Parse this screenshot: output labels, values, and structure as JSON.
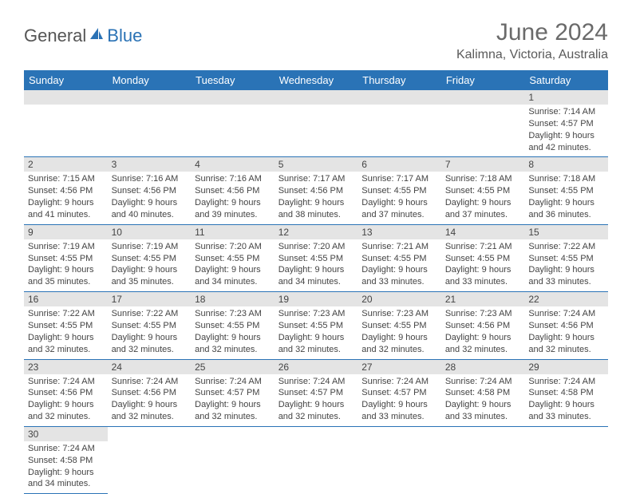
{
  "brand": {
    "part1": "General",
    "part2": "Blue"
  },
  "title": {
    "month": "June 2024",
    "location": "Kalimna, Victoria, Australia"
  },
  "colors": {
    "header_bg": "#2a73b6",
    "header_text": "#ffffff",
    "daynum_bg": "#e4e4e4",
    "row_border": "#2a73b6",
    "text": "#444444",
    "logo_gray": "#555555",
    "logo_blue": "#2a72b5"
  },
  "week_header": [
    "Sunday",
    "Monday",
    "Tuesday",
    "Wednesday",
    "Thursday",
    "Friday",
    "Saturday"
  ],
  "weeks": [
    [
      null,
      null,
      null,
      null,
      null,
      null,
      {
        "n": "1",
        "sr": "Sunrise: 7:14 AM",
        "ss": "Sunset: 4:57 PM",
        "d1": "Daylight: 9 hours",
        "d2": "and 42 minutes."
      }
    ],
    [
      {
        "n": "2",
        "sr": "Sunrise: 7:15 AM",
        "ss": "Sunset: 4:56 PM",
        "d1": "Daylight: 9 hours",
        "d2": "and 41 minutes."
      },
      {
        "n": "3",
        "sr": "Sunrise: 7:16 AM",
        "ss": "Sunset: 4:56 PM",
        "d1": "Daylight: 9 hours",
        "d2": "and 40 minutes."
      },
      {
        "n": "4",
        "sr": "Sunrise: 7:16 AM",
        "ss": "Sunset: 4:56 PM",
        "d1": "Daylight: 9 hours",
        "d2": "and 39 minutes."
      },
      {
        "n": "5",
        "sr": "Sunrise: 7:17 AM",
        "ss": "Sunset: 4:56 PM",
        "d1": "Daylight: 9 hours",
        "d2": "and 38 minutes."
      },
      {
        "n": "6",
        "sr": "Sunrise: 7:17 AM",
        "ss": "Sunset: 4:55 PM",
        "d1": "Daylight: 9 hours",
        "d2": "and 37 minutes."
      },
      {
        "n": "7",
        "sr": "Sunrise: 7:18 AM",
        "ss": "Sunset: 4:55 PM",
        "d1": "Daylight: 9 hours",
        "d2": "and 37 minutes."
      },
      {
        "n": "8",
        "sr": "Sunrise: 7:18 AM",
        "ss": "Sunset: 4:55 PM",
        "d1": "Daylight: 9 hours",
        "d2": "and 36 minutes."
      }
    ],
    [
      {
        "n": "9",
        "sr": "Sunrise: 7:19 AM",
        "ss": "Sunset: 4:55 PM",
        "d1": "Daylight: 9 hours",
        "d2": "and 35 minutes."
      },
      {
        "n": "10",
        "sr": "Sunrise: 7:19 AM",
        "ss": "Sunset: 4:55 PM",
        "d1": "Daylight: 9 hours",
        "d2": "and 35 minutes."
      },
      {
        "n": "11",
        "sr": "Sunrise: 7:20 AM",
        "ss": "Sunset: 4:55 PM",
        "d1": "Daylight: 9 hours",
        "d2": "and 34 minutes."
      },
      {
        "n": "12",
        "sr": "Sunrise: 7:20 AM",
        "ss": "Sunset: 4:55 PM",
        "d1": "Daylight: 9 hours",
        "d2": "and 34 minutes."
      },
      {
        "n": "13",
        "sr": "Sunrise: 7:21 AM",
        "ss": "Sunset: 4:55 PM",
        "d1": "Daylight: 9 hours",
        "d2": "and 33 minutes."
      },
      {
        "n": "14",
        "sr": "Sunrise: 7:21 AM",
        "ss": "Sunset: 4:55 PM",
        "d1": "Daylight: 9 hours",
        "d2": "and 33 minutes."
      },
      {
        "n": "15",
        "sr": "Sunrise: 7:22 AM",
        "ss": "Sunset: 4:55 PM",
        "d1": "Daylight: 9 hours",
        "d2": "and 33 minutes."
      }
    ],
    [
      {
        "n": "16",
        "sr": "Sunrise: 7:22 AM",
        "ss": "Sunset: 4:55 PM",
        "d1": "Daylight: 9 hours",
        "d2": "and 32 minutes."
      },
      {
        "n": "17",
        "sr": "Sunrise: 7:22 AM",
        "ss": "Sunset: 4:55 PM",
        "d1": "Daylight: 9 hours",
        "d2": "and 32 minutes."
      },
      {
        "n": "18",
        "sr": "Sunrise: 7:23 AM",
        "ss": "Sunset: 4:55 PM",
        "d1": "Daylight: 9 hours",
        "d2": "and 32 minutes."
      },
      {
        "n": "19",
        "sr": "Sunrise: 7:23 AM",
        "ss": "Sunset: 4:55 PM",
        "d1": "Daylight: 9 hours",
        "d2": "and 32 minutes."
      },
      {
        "n": "20",
        "sr": "Sunrise: 7:23 AM",
        "ss": "Sunset: 4:55 PM",
        "d1": "Daylight: 9 hours",
        "d2": "and 32 minutes."
      },
      {
        "n": "21",
        "sr": "Sunrise: 7:23 AM",
        "ss": "Sunset: 4:56 PM",
        "d1": "Daylight: 9 hours",
        "d2": "and 32 minutes."
      },
      {
        "n": "22",
        "sr": "Sunrise: 7:24 AM",
        "ss": "Sunset: 4:56 PM",
        "d1": "Daylight: 9 hours",
        "d2": "and 32 minutes."
      }
    ],
    [
      {
        "n": "23",
        "sr": "Sunrise: 7:24 AM",
        "ss": "Sunset: 4:56 PM",
        "d1": "Daylight: 9 hours",
        "d2": "and 32 minutes."
      },
      {
        "n": "24",
        "sr": "Sunrise: 7:24 AM",
        "ss": "Sunset: 4:56 PM",
        "d1": "Daylight: 9 hours",
        "d2": "and 32 minutes."
      },
      {
        "n": "25",
        "sr": "Sunrise: 7:24 AM",
        "ss": "Sunset: 4:57 PM",
        "d1": "Daylight: 9 hours",
        "d2": "and 32 minutes."
      },
      {
        "n": "26",
        "sr": "Sunrise: 7:24 AM",
        "ss": "Sunset: 4:57 PM",
        "d1": "Daylight: 9 hours",
        "d2": "and 32 minutes."
      },
      {
        "n": "27",
        "sr": "Sunrise: 7:24 AM",
        "ss": "Sunset: 4:57 PM",
        "d1": "Daylight: 9 hours",
        "d2": "and 33 minutes."
      },
      {
        "n": "28",
        "sr": "Sunrise: 7:24 AM",
        "ss": "Sunset: 4:58 PM",
        "d1": "Daylight: 9 hours",
        "d2": "and 33 minutes."
      },
      {
        "n": "29",
        "sr": "Sunrise: 7:24 AM",
        "ss": "Sunset: 4:58 PM",
        "d1": "Daylight: 9 hours",
        "d2": "and 33 minutes."
      }
    ],
    [
      {
        "n": "30",
        "sr": "Sunrise: 7:24 AM",
        "ss": "Sunset: 4:58 PM",
        "d1": "Daylight: 9 hours",
        "d2": "and 34 minutes."
      },
      null,
      null,
      null,
      null,
      null,
      null
    ]
  ]
}
